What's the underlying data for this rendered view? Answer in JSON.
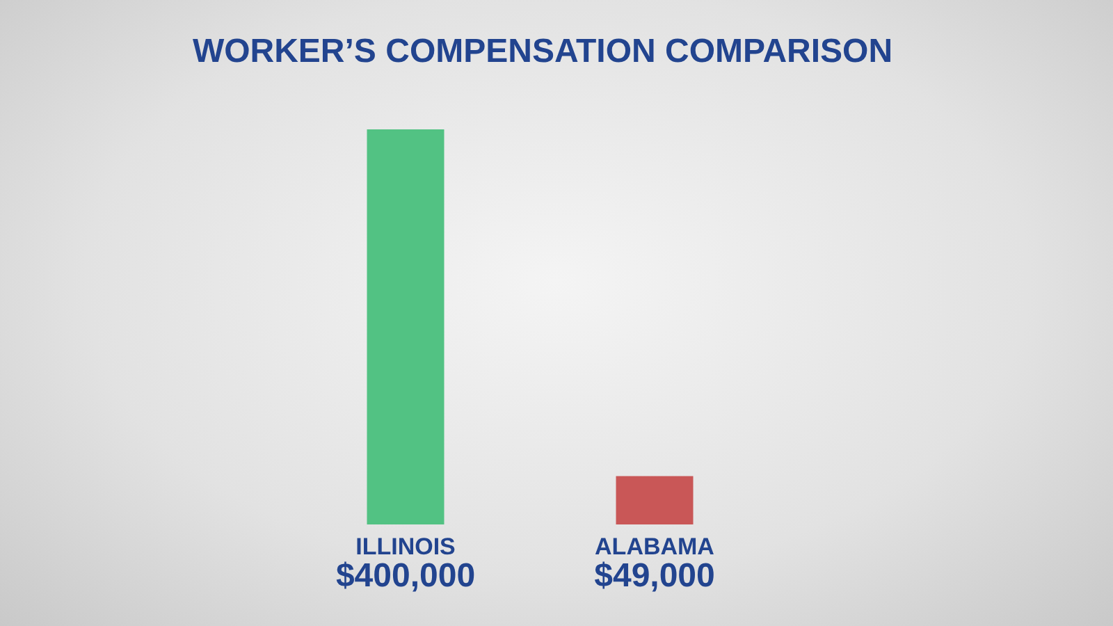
{
  "chart_data": {
    "type": "bar",
    "title": "WORKER’S COMPENSATION COMPARISON",
    "categories": [
      "ILLINOIS",
      "ALABAMA"
    ],
    "values": [
      400000,
      49000
    ],
    "colors": [
      "#52c283",
      "#c95757"
    ],
    "value_labels": [
      "$400,000",
      "$49,000"
    ]
  }
}
